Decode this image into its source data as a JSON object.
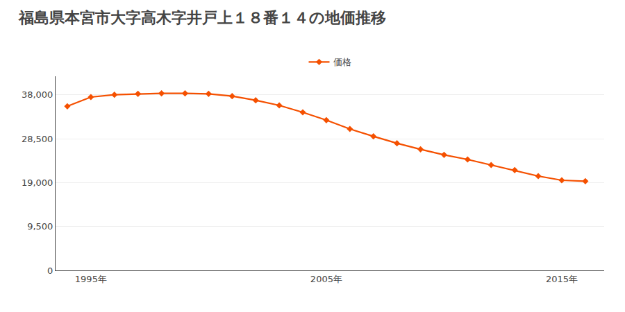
{
  "chart_data": {
    "type": "line",
    "title": "福島県本宮市大字高木字井戸上１８番１４の地価推移",
    "x": [
      1994,
      1995,
      1996,
      1997,
      1998,
      1999,
      2000,
      2001,
      2002,
      2003,
      2004,
      2005,
      2006,
      2007,
      2008,
      2009,
      2010,
      2011,
      2012,
      2013,
      2014,
      2015,
      2016
    ],
    "series": [
      {
        "name": "価格",
        "color": "#f55000",
        "marker": "diamond",
        "line_style": "solid",
        "values": [
          35500,
          37500,
          38000,
          38200,
          38300,
          38300,
          38200,
          37700,
          36800,
          35700,
          34200,
          32500,
          30600,
          29000,
          27500,
          26200,
          25000,
          24000,
          22800,
          21700,
          20400,
          19500,
          19300
        ]
      }
    ],
    "xlim": [
      1993.5,
      2016.8
    ],
    "xticks": [
      {
        "value": 1995,
        "label": "1995年"
      },
      {
        "value": 2005,
        "label": "2005年"
      },
      {
        "value": 2015,
        "label": "2015年"
      }
    ],
    "ylim": [
      0,
      42000
    ],
    "yticks": [
      0,
      {
        "value": 9500,
        "label": "9,500"
      },
      {
        "value": 19000,
        "label": "19,000"
      },
      {
        "value": 28500,
        "label": "28,500"
      },
      {
        "value": 38000,
        "label": "38,000"
      }
    ],
    "grid": "y",
    "legend": "top"
  }
}
